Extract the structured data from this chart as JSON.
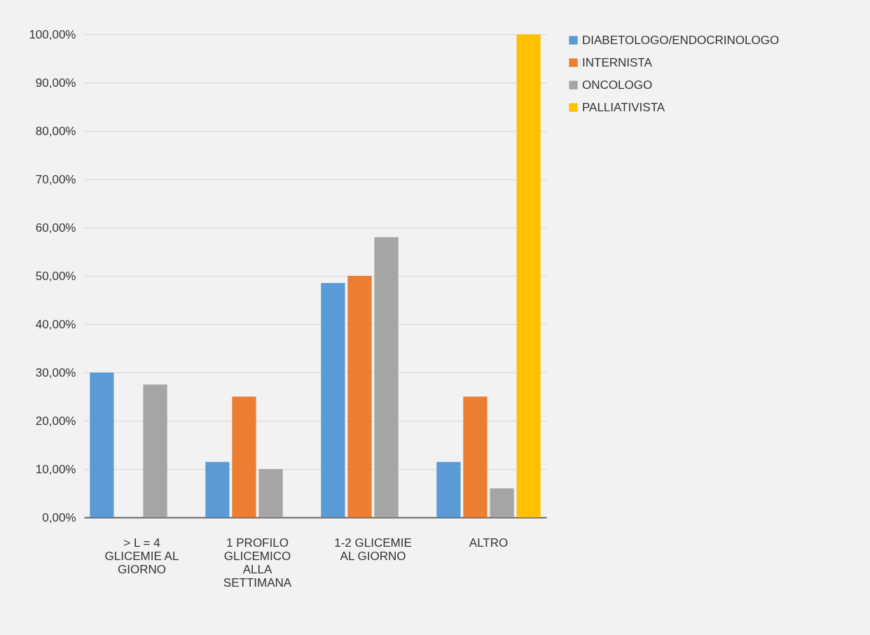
{
  "chart_data": {
    "type": "bar",
    "categories": [
      "> L = 4 GLICEMIE AL GIORNO",
      "1 PROFILO GLICEMICO ALLA SETTIMANA",
      "1-2 GLICEMIE AL GIORNO",
      "ALTRO"
    ],
    "series": [
      {
        "name": "DIABETOLOGO/ENDOCRINOLOGO",
        "color": "#5b9bd5",
        "values": [
          30,
          11.5,
          48.5,
          11.5
        ]
      },
      {
        "name": "INTERNISTA",
        "color": "#ed7d31",
        "values": [
          0,
          25,
          50,
          25
        ]
      },
      {
        "name": "ONCOLOGO",
        "color": "#a5a5a5",
        "values": [
          27.5,
          10,
          58,
          6
        ]
      },
      {
        "name": "PALLIATIVISTA",
        "color": "#ffc000",
        "values": [
          0,
          0,
          0,
          100
        ]
      }
    ],
    "ylim": [
      0,
      100
    ],
    "yticks": [
      {
        "value": 0,
        "label": "0,00%"
      },
      {
        "value": 10,
        "label": "10,00%"
      },
      {
        "value": 20,
        "label": "20,00%"
      },
      {
        "value": 30,
        "label": "30,00%"
      },
      {
        "value": 40,
        "label": "40,00%"
      },
      {
        "value": 50,
        "label": "50,00%"
      },
      {
        "value": 60,
        "label": "60,00%"
      },
      {
        "value": 70,
        "label": "70,00%"
      },
      {
        "value": 80,
        "label": "80,00%"
      },
      {
        "value": 90,
        "label": "90,00%"
      },
      {
        "value": 100,
        "label": "100,00%"
      }
    ],
    "grid": true,
    "legend": "right"
  }
}
